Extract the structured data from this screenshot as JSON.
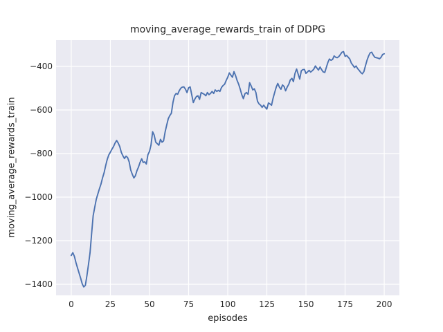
{
  "figure": {
    "background": "#FFFFFF"
  },
  "chart_data": {
    "type": "line",
    "title": "moving_average_rewards_train of DDPG",
    "xlabel": "episodes",
    "ylabel": "moving_average_rewards_train",
    "x_ticks": [
      0,
      25,
      50,
      75,
      100,
      125,
      150,
      175,
      200
    ],
    "x_tick_labels": [
      "0",
      "25",
      "50",
      "75",
      "100",
      "125",
      "150",
      "175",
      "200"
    ],
    "y_ticks": [
      -400,
      -600,
      -800,
      -1000,
      -1200,
      -1400
    ],
    "y_tick_labels": [
      "−400",
      "−600",
      "−800",
      "−1000",
      "−1200",
      "−1400"
    ],
    "xlim": [
      -9.7,
      209.7
    ],
    "ylim": [
      -1450.8,
      -279.4
    ],
    "grid": true,
    "legend_position": "none",
    "axes_bg_color": "#EAEAF2",
    "grid_color": "#FFFFFF",
    "text_color": "#262626",
    "series": [
      {
        "name": "DDPG",
        "color": "#4C72B0",
        "x_start": 0,
        "x_step": 1,
        "y": [
          -1268,
          -1255,
          -1272,
          -1300,
          -1325,
          -1348,
          -1372,
          -1398,
          -1412,
          -1405,
          -1362,
          -1310,
          -1255,
          -1170,
          -1085,
          -1048,
          -1010,
          -985,
          -962,
          -940,
          -912,
          -888,
          -855,
          -827,
          -806,
          -794,
          -780,
          -768,
          -752,
          -740,
          -752,
          -768,
          -795,
          -810,
          -823,
          -812,
          -818,
          -838,
          -875,
          -895,
          -912,
          -902,
          -878,
          -862,
          -840,
          -824,
          -841,
          -838,
          -848,
          -805,
          -790,
          -760,
          -700,
          -715,
          -748,
          -755,
          -762,
          -735,
          -748,
          -742,
          -700,
          -670,
          -640,
          -625,
          -615,
          -565,
          -535,
          -524,
          -528,
          -512,
          -500,
          -495,
          -494,
          -505,
          -520,
          -498,
          -494,
          -530,
          -566,
          -550,
          -538,
          -535,
          -551,
          -520,
          -524,
          -528,
          -535,
          -520,
          -530,
          -524,
          -515,
          -524,
          -508,
          -515,
          -510,
          -515,
          -497,
          -488,
          -482,
          -465,
          -450,
          -430,
          -440,
          -450,
          -424,
          -442,
          -465,
          -482,
          -505,
          -530,
          -548,
          -525,
          -520,
          -528,
          -475,
          -490,
          -508,
          -503,
          -520,
          -560,
          -572,
          -578,
          -588,
          -578,
          -588,
          -596,
          -568,
          -572,
          -578,
          -545,
          -520,
          -495,
          -478,
          -495,
          -505,
          -485,
          -492,
          -512,
          -495,
          -482,
          -462,
          -455,
          -470,
          -432,
          -412,
          -435,
          -458,
          -420,
          -415,
          -414,
          -432,
          -425,
          -418,
          -426,
          -420,
          -413,
          -398,
          -408,
          -417,
          -403,
          -415,
          -425,
          -428,
          -405,
          -382,
          -366,
          -372,
          -368,
          -352,
          -358,
          -360,
          -355,
          -345,
          -335,
          -332,
          -354,
          -350,
          -358,
          -366,
          -385,
          -395,
          -405,
          -398,
          -410,
          -418,
          -428,
          -434,
          -424,
          -398,
          -372,
          -352,
          -338,
          -335,
          -348,
          -358,
          -360,
          -362,
          -365,
          -358,
          -345,
          -342
        ]
      }
    ]
  }
}
